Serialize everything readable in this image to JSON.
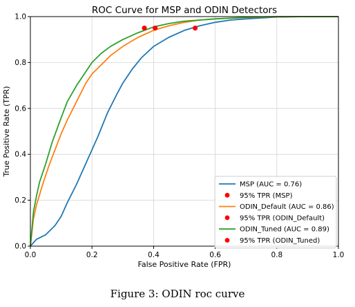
{
  "chart_data": {
    "type": "line",
    "title": "ROC Curve for MSP and ODIN Detectors",
    "xlabel": "False Positive Rate (FPR)",
    "ylabel": "True Positive Rate (TPR)",
    "xlim": [
      0.0,
      1.0
    ],
    "ylim": [
      0.0,
      1.0
    ],
    "xticks": [
      "0.0",
      "0.2",
      "0.4",
      "0.6",
      "0.8",
      "1.0"
    ],
    "yticks": [
      "0.0",
      "0.2",
      "0.4",
      "0.6",
      "0.8",
      "1.0"
    ],
    "grid": true,
    "legend_position": "lower-right",
    "series": [
      {
        "name": "MSP (AUC = 0.76)",
        "color": "#1f77b4",
        "x": [
          0.0,
          0.02,
          0.05,
          0.08,
          0.1,
          0.12,
          0.15,
          0.18,
          0.2,
          0.22,
          0.25,
          0.28,
          0.3,
          0.33,
          0.36,
          0.4,
          0.45,
          0.5,
          0.55,
          0.6,
          0.65,
          0.7,
          0.8,
          0.9,
          1.0
        ],
        "y": [
          0.0,
          0.03,
          0.05,
          0.09,
          0.13,
          0.19,
          0.27,
          0.36,
          0.42,
          0.48,
          0.58,
          0.66,
          0.71,
          0.77,
          0.82,
          0.87,
          0.91,
          0.94,
          0.96,
          0.975,
          0.985,
          0.99,
          0.998,
          1.0,
          1.0
        ]
      },
      {
        "name": "95% TPR (MSP)",
        "color": "#ff0000",
        "marker": "point",
        "x": [
          0.535
        ],
        "y": [
          0.95
        ]
      },
      {
        "name": "ODIN_Default (AUC = 0.86)",
        "color": "#ff7f0e",
        "x": [
          0.0,
          0.01,
          0.02,
          0.04,
          0.06,
          0.08,
          0.1,
          0.12,
          0.15,
          0.18,
          0.2,
          0.23,
          0.26,
          0.3,
          0.35,
          0.4,
          0.45,
          0.5,
          0.55,
          0.6,
          0.7,
          0.8,
          0.9,
          1.0
        ],
        "y": [
          0.0,
          0.12,
          0.18,
          0.27,
          0.35,
          0.42,
          0.49,
          0.55,
          0.63,
          0.71,
          0.75,
          0.79,
          0.83,
          0.87,
          0.91,
          0.94,
          0.96,
          0.975,
          0.985,
          0.99,
          0.996,
          0.999,
          1.0,
          1.0
        ]
      },
      {
        "name": "95% TPR (ODIN_Default)",
        "color": "#ff0000",
        "marker": "point",
        "x": [
          0.405
        ],
        "y": [
          0.95
        ]
      },
      {
        "name": "ODIN_Tuned (AUC = 0.89)",
        "color": "#2ca02c",
        "x": [
          0.0,
          0.01,
          0.02,
          0.03,
          0.05,
          0.07,
          0.1,
          0.12,
          0.15,
          0.18,
          0.2,
          0.23,
          0.26,
          0.3,
          0.35,
          0.4,
          0.45,
          0.5,
          0.6,
          0.7,
          0.8,
          0.9,
          1.0
        ],
        "y": [
          0.0,
          0.15,
          0.22,
          0.28,
          0.36,
          0.45,
          0.56,
          0.63,
          0.7,
          0.76,
          0.8,
          0.84,
          0.87,
          0.9,
          0.93,
          0.955,
          0.97,
          0.98,
          0.99,
          0.997,
          1.0,
          1.0,
          1.0
        ]
      },
      {
        "name": "95% TPR (ODIN_Tuned)",
        "color": "#ff0000",
        "marker": "point",
        "x": [
          0.37
        ],
        "y": [
          0.95
        ]
      }
    ]
  },
  "caption": "Figure 3:  ODIN roc curve"
}
